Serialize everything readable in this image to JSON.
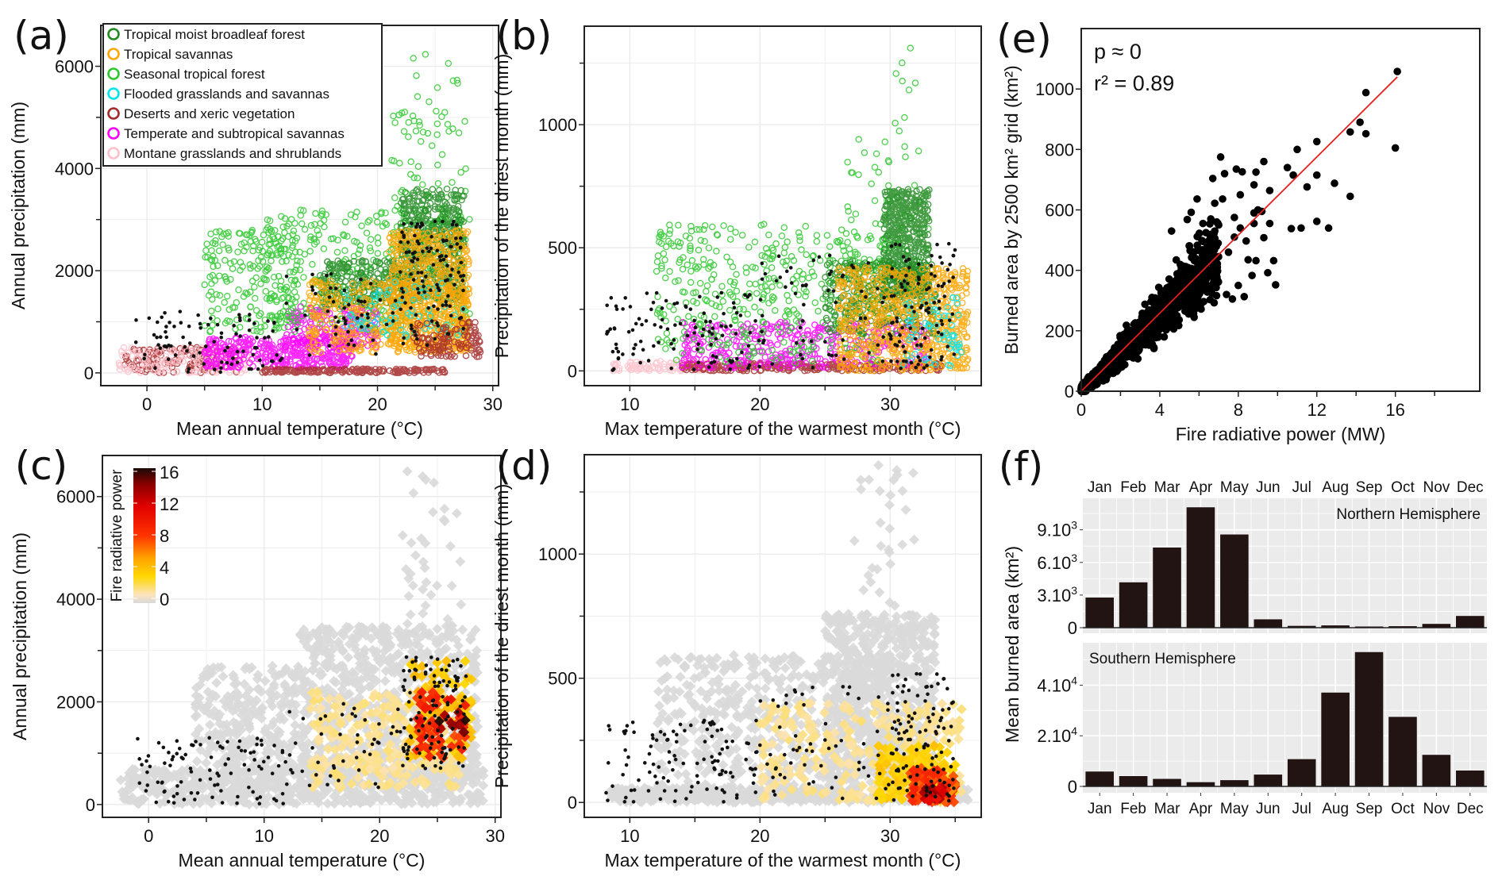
{
  "figure": {
    "panels": [
      "(a)",
      "(b)",
      "(c)",
      "(d)",
      "(e)",
      "(f)"
    ]
  },
  "chart_data": [
    {
      "id": "a",
      "type": "scatter",
      "label": "(a)",
      "xlabel": "Mean annual temperature (°C)",
      "ylabel": "Annual precipitation (mm)",
      "xlim": [
        -4,
        30.5
      ],
      "ylim": [
        -250,
        6800
      ],
      "xticks": [
        0,
        10,
        20,
        30
      ],
      "yticks": [
        0,
        2000,
        4000,
        6000
      ],
      "grid": true,
      "legend_position": "top-left",
      "legend": [
        {
          "name": "Tropical moist broadleaf forest",
          "color": "#228B22"
        },
        {
          "name": "Tropical savannas",
          "color": "#FFA500"
        },
        {
          "name": "Seasonal tropical forest",
          "color": "#2DC82D"
        },
        {
          "name": "Flooded grasslands and savannas",
          "color": "#00E5EE"
        },
        {
          "name": "Deserts and xeric vegetation",
          "color": "#A52A2A"
        },
        {
          "name": "Temperate and subtropical savannas",
          "color": "#FF00FF"
        },
        {
          "name": "Montane grasslands and shrublands",
          "color": "#FFC0CB"
        }
      ],
      "clusters": [
        {
          "series": 4,
          "x": [
            -2,
            8
          ],
          "y": [
            0,
            500
          ],
          "n": 140
        },
        {
          "series": 6,
          "x": [
            -2.5,
            9
          ],
          "y": [
            0,
            500
          ],
          "n": 160
        },
        {
          "series": 5,
          "x": [
            5,
            18
          ],
          "y": [
            100,
            700
          ],
          "n": 360
        },
        {
          "series": 5,
          "x": [
            12,
            20
          ],
          "y": [
            500,
            1300
          ],
          "n": 200
        },
        {
          "series": 4,
          "x": [
            10,
            26
          ],
          "y": [
            0,
            80
          ],
          "n": 180
        },
        {
          "series": 2,
          "x": [
            5,
            13
          ],
          "y": [
            800,
            2800
          ],
          "n": 200
        },
        {
          "series": 2,
          "x": [
            10,
            28
          ],
          "y": [
            800,
            3200
          ],
          "n": 330
        },
        {
          "series": 2,
          "x": [
            21,
            28
          ],
          "y": [
            2500,
            5200
          ],
          "n": 70
        },
        {
          "series": 0,
          "x": [
            15,
            22
          ],
          "y": [
            1300,
            2200
          ],
          "n": 220
        },
        {
          "series": 0,
          "x": [
            22,
            27.5
          ],
          "y": [
            1400,
            3600
          ],
          "n": 500
        },
        {
          "series": 1,
          "x": [
            14,
            28
          ],
          "y": [
            400,
            1800
          ],
          "n": 420
        },
        {
          "series": 1,
          "x": [
            21,
            28
          ],
          "y": [
            400,
            2800
          ],
          "n": 600
        },
        {
          "series": 3,
          "x": [
            17,
            27.5
          ],
          "y": [
            700,
            1800
          ],
          "n": 70
        },
        {
          "series": 4,
          "x": [
            23,
            29
          ],
          "y": [
            300,
            1000
          ],
          "n": 120
        },
        {
          "series": 2,
          "x": [
            23,
            27
          ],
          "y": [
            5000,
            6700
          ],
          "n": 12
        }
      ],
      "burned_points": {
        "color": "#111111",
        "clusters": [
          {
            "x": [
              -1,
              12
            ],
            "y": [
              0,
              1200
            ],
            "n": 90
          },
          {
            "x": [
              12,
              22
            ],
            "y": [
              300,
              2000
            ],
            "n": 50
          },
          {
            "x": [
              22,
              27.5
            ],
            "y": [
              500,
              3000
            ],
            "n": 110
          }
        ]
      }
    },
    {
      "id": "b",
      "type": "scatter",
      "label": "(b)",
      "xlabel": "Max temperature of the warmest month (°C)",
      "ylabel": "Precipitation of the driest month (mm)",
      "xlim": [
        6.5,
        37
      ],
      "ylim": [
        -60,
        1400
      ],
      "xticks": [
        10,
        20,
        30
      ],
      "yticks": [
        0,
        500,
        1000
      ],
      "grid": true,
      "clusters": [
        {
          "series": 6,
          "x": [
            8.5,
            16
          ],
          "y": [
            0,
            40
          ],
          "n": 90
        },
        {
          "series": 4,
          "x": [
            14,
            34
          ],
          "y": [
            0,
            30
          ],
          "n": 260
        },
        {
          "series": 5,
          "x": [
            14,
            33
          ],
          "y": [
            10,
            200
          ],
          "n": 380
        },
        {
          "series": 2,
          "x": [
            12,
            30
          ],
          "y": [
            30,
            600
          ],
          "n": 430
        },
        {
          "series": 2,
          "x": [
            26,
            33
          ],
          "y": [
            400,
            1000
          ],
          "n": 60
        },
        {
          "series": 0,
          "x": [
            25,
            33.5
          ],
          "y": [
            150,
            450
          ],
          "n": 320
        },
        {
          "series": 0,
          "x": [
            29.5,
            33
          ],
          "y": [
            300,
            740
          ],
          "n": 520
        },
        {
          "series": 1,
          "x": [
            26,
            36
          ],
          "y": [
            0,
            420
          ],
          "n": 650
        },
        {
          "series": 3,
          "x": [
            31,
            35.5
          ],
          "y": [
            20,
            300
          ],
          "n": 60
        },
        {
          "series": 2,
          "x": [
            29,
            32
          ],
          "y": [
            1000,
            1380
          ],
          "n": 8
        }
      ],
      "burned_points": {
        "color": "#111111",
        "clusters": [
          {
            "x": [
              8,
              20
            ],
            "y": [
              0,
              320
            ],
            "n": 110
          },
          {
            "x": [
              20,
              30
            ],
            "y": [
              0,
              470
            ],
            "n": 60
          },
          {
            "x": [
              30,
              35
            ],
            "y": [
              0,
              520
            ],
            "n": 100
          }
        ]
      }
    },
    {
      "id": "c",
      "type": "scatter",
      "label": "(c)",
      "xlabel": "Mean annual temperature (°C)",
      "ylabel": "Annual precipitation (mm)",
      "xlim": [
        -4,
        30.5
      ],
      "ylim": [
        -250,
        6800
      ],
      "xticks": [
        0,
        10,
        20,
        30
      ],
      "yticks": [
        0,
        2000,
        4000,
        6000
      ],
      "grid": true,
      "colorbar": {
        "title": "Fire radiative power",
        "ticks": [
          0,
          4,
          8,
          12,
          16
        ],
        "range": [
          0,
          16
        ],
        "position": "top-left",
        "stops": [
          [
            "0",
            "#D9D9D9"
          ],
          [
            "0.06",
            "#FBE3BE"
          ],
          [
            "0.2",
            "#FFD700"
          ],
          [
            "0.33",
            "#FFA500"
          ],
          [
            "0.5",
            "#FF3300"
          ],
          [
            "0.72",
            "#E00000"
          ],
          [
            "0.88",
            "#8B0000"
          ],
          [
            "1",
            "#1A0A05"
          ]
        ]
      },
      "marker": "diamond",
      "clusters": [
        {
          "frp": 0,
          "x": [
            -2.5,
            29
          ],
          "y": [
            0,
            700
          ],
          "n": 600
        },
        {
          "frp": 0,
          "x": [
            4,
            13
          ],
          "y": [
            300,
            2700
          ],
          "n": 300
        },
        {
          "frp": 0,
          "x": [
            13,
            28.5
          ],
          "y": [
            500,
            3500
          ],
          "n": 700
        },
        {
          "frp": 0,
          "x": [
            22,
            27.5
          ],
          "y": [
            3200,
            6600
          ],
          "n": 40
        },
        {
          "frp": 1.5,
          "x": [
            14,
            27
          ],
          "y": [
            300,
            2200
          ],
          "n": 260
        },
        {
          "frp": 4,
          "x": [
            22.5,
            28
          ],
          "y": [
            900,
            2800
          ],
          "n": 110
        },
        {
          "frp": 9,
          "x": [
            23,
            27.5
          ],
          "y": [
            900,
            2200
          ],
          "n": 60
        },
        {
          "frp": 14,
          "x": [
            25,
            27.5
          ],
          "y": [
            1400,
            1800
          ],
          "n": 12
        }
      ],
      "burned_points": {
        "color": "#111111",
        "clusters": [
          {
            "x": [
              -1,
              12
            ],
            "y": [
              0,
              1300
            ],
            "n": 100
          },
          {
            "x": [
              12,
              22
            ],
            "y": [
              300,
              2000
            ],
            "n": 45
          },
          {
            "x": [
              22,
              27.5
            ],
            "y": [
              700,
              2900
            ],
            "n": 110
          }
        ]
      }
    },
    {
      "id": "d",
      "type": "scatter",
      "label": "(d)",
      "xlabel": "Max temperature of the warmest month (°C)",
      "ylabel": "Precipitation of the driest month (mm)",
      "xlim": [
        6.5,
        37
      ],
      "ylim": [
        -60,
        1400
      ],
      "xticks": [
        10,
        20,
        30
      ],
      "yticks": [
        0,
        500,
        1000
      ],
      "grid": true,
      "marker": "diamond",
      "clusters": [
        {
          "frp": 0,
          "x": [
            8.5,
            36
          ],
          "y": [
            0,
            60
          ],
          "n": 500
        },
        {
          "frp": 0,
          "x": [
            12,
            30
          ],
          "y": [
            30,
            600
          ],
          "n": 500
        },
        {
          "frp": 0,
          "x": [
            25,
            33.5
          ],
          "y": [
            100,
            760
          ],
          "n": 700
        },
        {
          "frp": 0,
          "x": [
            27,
            32
          ],
          "y": [
            760,
            1380
          ],
          "n": 30
        },
        {
          "frp": 1.5,
          "x": [
            20,
            35.5
          ],
          "y": [
            0,
            400
          ],
          "n": 260
        },
        {
          "frp": 3.5,
          "x": [
            29,
            35
          ],
          "y": [
            0,
            230
          ],
          "n": 150
        },
        {
          "frp": 8,
          "x": [
            31.5,
            35
          ],
          "y": [
            0,
            140
          ],
          "n": 90
        },
        {
          "frp": 13,
          "x": [
            32.5,
            34.5
          ],
          "y": [
            0,
            60
          ],
          "n": 25
        }
      ],
      "burned_points": {
        "color": "#111111",
        "clusters": [
          {
            "x": [
              8,
              20
            ],
            "y": [
              0,
              330
            ],
            "n": 110
          },
          {
            "x": [
              20,
              30
            ],
            "y": [
              0,
              470
            ],
            "n": 60
          },
          {
            "x": [
              30,
              35
            ],
            "y": [
              0,
              520
            ],
            "n": 110
          }
        ]
      }
    },
    {
      "id": "e",
      "type": "scatter",
      "label": "(e)",
      "xlabel": "Fire radiative power (MW)",
      "ylabel": "Burned area by 2500 km² grid (km²)",
      "xlim": [
        0,
        20.3
      ],
      "ylim": [
        0,
        1200
      ],
      "xticks": [
        0,
        4,
        8,
        12,
        16
      ],
      "yticks": [
        0,
        200,
        400,
        600,
        800,
        1000
      ],
      "annotations": [
        "p ≈ 0",
        "r² = 0.89"
      ],
      "fit_line": {
        "x": [
          0,
          16.1
        ],
        "y": [
          0,
          1040
        ],
        "color": "#E51E1E"
      },
      "points_explicit": [
        [
          16.1,
          1058
        ],
        [
          14.5,
          988
        ],
        [
          14.2,
          890
        ],
        [
          13.7,
          858
        ],
        [
          14.5,
          852
        ],
        [
          16.0,
          805
        ],
        [
          12.0,
          826
        ],
        [
          11.0,
          800
        ],
        [
          10.5,
          740
        ],
        [
          10.8,
          715
        ],
        [
          12.0,
          715
        ],
        [
          11.5,
          676
        ],
        [
          12.9,
          688
        ],
        [
          13.7,
          645
        ],
        [
          12.0,
          562
        ],
        [
          10.7,
          538
        ],
        [
          11.2,
          540
        ],
        [
          12.6,
          540
        ],
        [
          9.3,
          760
        ],
        [
          8.9,
          725
        ],
        [
          7.9,
          735
        ],
        [
          8.2,
          726
        ],
        [
          7.1,
          775
        ],
        [
          7.3,
          720
        ],
        [
          6.7,
          704
        ],
        [
          8.8,
          683
        ],
        [
          9.6,
          664
        ],
        [
          8.1,
          650
        ],
        [
          7.2,
          636
        ],
        [
          6.8,
          622
        ],
        [
          5.9,
          636
        ],
        [
          5.6,
          592
        ],
        [
          9.0,
          600
        ],
        [
          9.2,
          595
        ],
        [
          8.8,
          590
        ],
        [
          7.8,
          575
        ],
        [
          9.6,
          555
        ],
        [
          8.8,
          555
        ],
        [
          8.1,
          540
        ],
        [
          7.8,
          510
        ],
        [
          8.4,
          497
        ],
        [
          9.3,
          508
        ],
        [
          7.5,
          460
        ],
        [
          8.5,
          435
        ],
        [
          8.9,
          432
        ],
        [
          8.7,
          383
        ],
        [
          9.8,
          432
        ],
        [
          9.5,
          392
        ],
        [
          9.9,
          352
        ],
        [
          8.0,
          350
        ],
        [
          8.3,
          313
        ],
        [
          7.7,
          305
        ],
        [
          7.4,
          320
        ],
        [
          4.6,
          530
        ],
        [
          5.4,
          568
        ],
        [
          6.6,
          570
        ],
        [
          6.2,
          555
        ],
        [
          7.0,
          550
        ]
      ],
      "dense_cloud": {
        "x_range": [
          0,
          7
        ],
        "slope": 64,
        "spread_frac": 0.45,
        "n": 1500
      },
      "marker_color": "#000000"
    },
    {
      "id": "f",
      "type": "bar",
      "label": "(f)",
      "ylabel": "Mean burned area (km²)",
      "categories": [
        "Jan",
        "Feb",
        "Mar",
        "Apr",
        "May",
        "Jun",
        "Jul",
        "Aug",
        "Sep",
        "Oct",
        "Nov",
        "Dec"
      ],
      "bar_color": "#231414",
      "panel_bg": "#EBEBEB",
      "facets": [
        {
          "name": "Northern Hemisphere",
          "ylim": [
            0,
            11600
          ],
          "yticks": [
            0,
            3000,
            6000,
            9000
          ],
          "ytick_labels": [
            {
              "base": "0",
              "exp": ""
            },
            {
              "base": "3.10",
              "exp": "3"
            },
            {
              "base": "6.10",
              "exp": "3"
            },
            {
              "base": "9.10",
              "exp": "3"
            }
          ],
          "values": [
            2800,
            4200,
            7400,
            11100,
            8600,
            800,
            200,
            240,
            140,
            170,
            380,
            1110
          ],
          "label_position": "top-right"
        },
        {
          "name": "Southern Hemisphere",
          "ylim": [
            0,
            55500
          ],
          "yticks": [
            0,
            20000,
            40000
          ],
          "ytick_labels": [
            {
              "base": "0",
              "exp": ""
            },
            {
              "base": "2.10",
              "exp": "4"
            },
            {
              "base": "4.10",
              "exp": "4"
            }
          ],
          "values": [
            6000,
            4200,
            3100,
            1800,
            2600,
            4800,
            10900,
            37200,
            53200,
            27600,
            12600,
            6400
          ],
          "label_position": "top-left"
        }
      ]
    }
  ]
}
